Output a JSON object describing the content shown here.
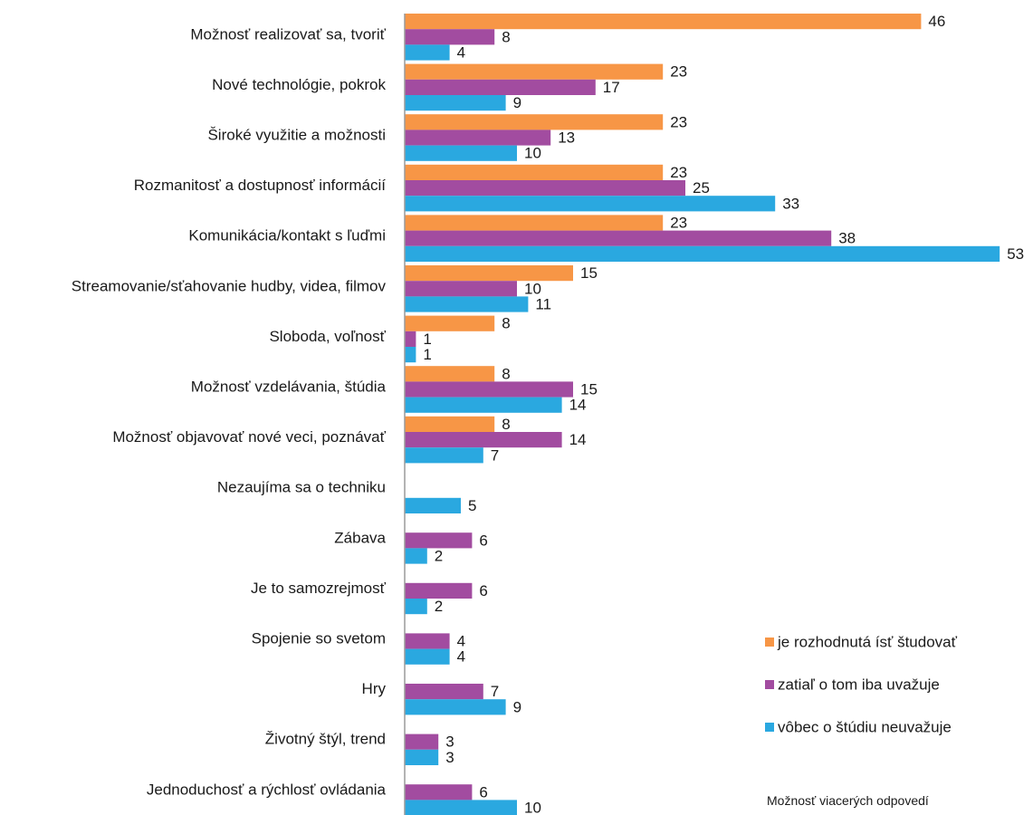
{
  "chart_data": {
    "type": "bar",
    "orientation": "horizontal",
    "categories": [
      "Možnosť realizovať sa, tvoriť",
      "Nové technológie, pokrok",
      "Široké využitie a možnosti",
      "Rozmanitosť a dostupnosť  informácií",
      "Komunikácia/kontakt s ľuďmi",
      "Streamovanie/sťahovanie hudby, videa, filmov",
      "Sloboda, voľnosť",
      "Možnosť vzdelávania, štúdia",
      "Možnosť objavovať nové veci, poznávať",
      "Nezaujíma sa o techniku",
      "Zábava",
      "Je to samozrejmosť",
      "Spojenie so svetom",
      "Hry",
      "Životný štýl, trend",
      "Jednoduchosť a rýchlosť ovládania"
    ],
    "series": [
      {
        "name": "je rozhodnutá ísť študovať",
        "color": "#F79646",
        "values": [
          46,
          23,
          23,
          23,
          23,
          15,
          8,
          8,
          8,
          null,
          null,
          null,
          null,
          null,
          null,
          null
        ]
      },
      {
        "name": "zatiaľ o tom iba uvažuje",
        "color": "#A24CA0",
        "values": [
          8,
          17,
          13,
          25,
          38,
          10,
          1,
          15,
          14,
          null,
          6,
          6,
          4,
          7,
          3,
          6
        ]
      },
      {
        "name": "vôbec o štúdiu neuvažuje",
        "color": "#2AA8E0",
        "values": [
          4,
          9,
          10,
          33,
          53,
          11,
          1,
          14,
          7,
          5,
          2,
          2,
          4,
          9,
          3,
          10
        ]
      }
    ],
    "xlim": [
      0,
      53
    ],
    "grid": false,
    "data_labels": true,
    "legend_position": "bottom-right",
    "note": "Možnosť viacerých odpovedí"
  }
}
